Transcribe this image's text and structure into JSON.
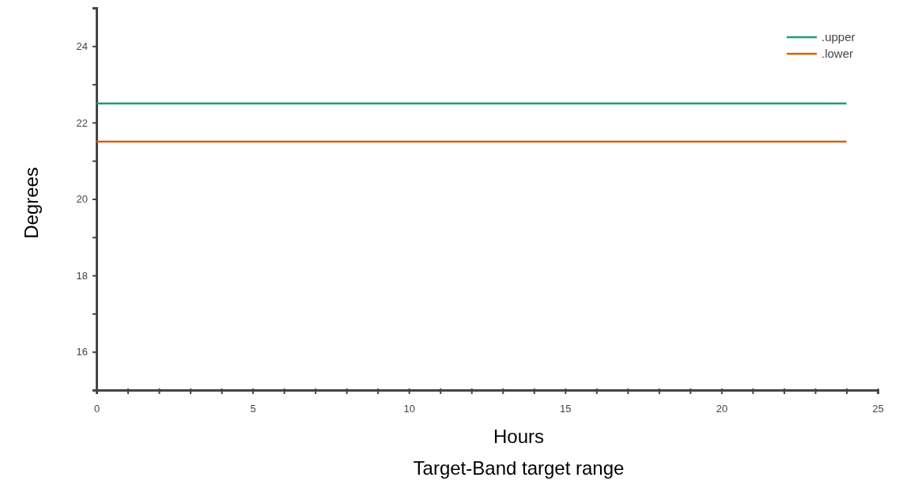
{
  "chart_data": {
    "type": "line",
    "title": "Target-Band target range",
    "xlabel": "Hours",
    "ylabel": "Degrees",
    "x": [
      0,
      24
    ],
    "series": [
      {
        "name": ".upper",
        "color": "#1b9e77",
        "values": [
          22.5,
          22.5
        ]
      },
      {
        "name": ".lower",
        "color": "#d95f02",
        "values": [
          21.5,
          21.5
        ]
      }
    ],
    "xlim": [
      0,
      25
    ],
    "ylim": [
      15,
      25
    ],
    "xticks": [
      0,
      {
        "value": 1,
        "label": null
      },
      {
        "value": 2,
        "label": null
      },
      {
        "value": 3,
        "label": null
      },
      {
        "value": 4,
        "label": null
      },
      5,
      {
        "value": 6,
        "label": null
      },
      {
        "value": 7,
        "label": null
      },
      {
        "value": 8,
        "label": null
      },
      {
        "value": 9,
        "label": null
      },
      10,
      {
        "value": 11,
        "label": null
      },
      {
        "value": 12,
        "label": null
      },
      {
        "value": 13,
        "label": null
      },
      {
        "value": 14,
        "label": null
      },
      15,
      {
        "value": 16,
        "label": null
      },
      {
        "value": 17,
        "label": null
      },
      {
        "value": 18,
        "label": null
      },
      {
        "value": 19,
        "label": null
      },
      20,
      {
        "value": 21,
        "label": null
      },
      {
        "value": 22,
        "label": null
      },
      {
        "value": 23,
        "label": null
      },
      {
        "value": 24,
        "label": null
      },
      25
    ],
    "yticks": [
      {
        "value": 15,
        "label": null
      },
      16,
      {
        "value": 17,
        "label": null
      },
      18,
      {
        "value": 19,
        "label": null
      },
      20,
      {
        "value": 21,
        "label": null
      },
      22,
      {
        "value": 23,
        "label": null
      },
      24,
      {
        "value": 25,
        "label": null
      }
    ],
    "legend": "top right",
    "grid": false,
    "marker": "none",
    "line_style": "solid"
  }
}
